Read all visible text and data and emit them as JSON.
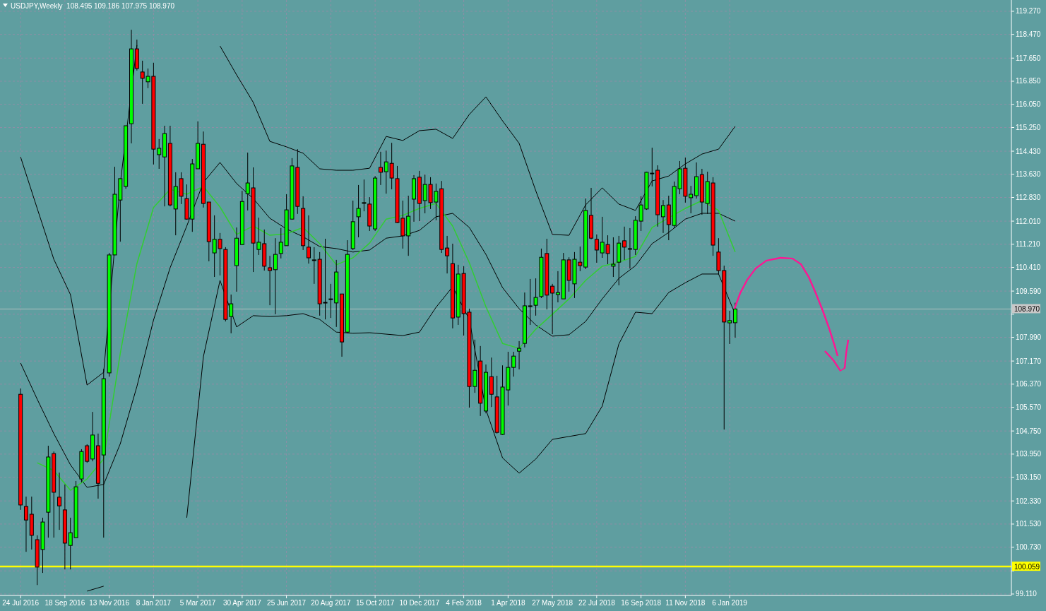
{
  "chart_data": {
    "type": "candlestick",
    "title": "USDJPY,Weekly  108.495 109.186 107.975 108.970",
    "x": [
      "2016-07-24",
      "2016-07-31",
      "2016-08-07",
      "2016-08-14",
      "2016-08-21",
      "2016-08-28",
      "2016-09-04",
      "2016-09-11",
      "2016-09-18",
      "2016-09-25",
      "2016-10-02",
      "2016-10-09",
      "2016-10-16",
      "2016-10-23",
      "2016-10-30",
      "2016-11-06",
      "2016-11-13",
      "2016-11-20",
      "2016-11-27",
      "2016-12-04",
      "2016-12-11",
      "2016-12-18",
      "2016-12-25",
      "2017-01-01",
      "2017-01-08",
      "2017-01-15",
      "2017-01-22",
      "2017-01-29",
      "2017-02-05",
      "2017-02-12",
      "2017-02-19",
      "2017-02-26",
      "2017-03-05",
      "2017-03-12",
      "2017-03-19",
      "2017-03-26",
      "2017-04-02",
      "2017-04-09",
      "2017-04-16",
      "2017-04-23",
      "2017-04-30",
      "2017-05-07",
      "2017-05-14",
      "2017-05-21",
      "2017-05-28",
      "2017-06-04",
      "2017-06-11",
      "2017-06-18",
      "2017-06-25",
      "2017-07-02",
      "2017-07-09",
      "2017-07-16",
      "2017-07-23",
      "2017-07-30",
      "2017-08-06",
      "2017-08-13",
      "2017-08-20",
      "2017-08-27",
      "2017-09-03",
      "2017-09-10",
      "2017-09-17",
      "2017-09-24",
      "2017-10-01",
      "2017-10-08",
      "2017-10-15",
      "2017-10-22",
      "2017-10-29",
      "2017-11-05",
      "2017-11-12",
      "2017-11-19",
      "2017-11-26",
      "2017-12-03",
      "2017-12-10",
      "2017-12-17",
      "2017-12-24",
      "2017-12-31",
      "2018-01-07",
      "2018-01-14",
      "2018-01-21",
      "2018-01-28",
      "2018-02-04",
      "2018-02-11",
      "2018-02-18",
      "2018-02-25",
      "2018-03-04",
      "2018-03-11",
      "2018-03-18",
      "2018-03-25",
      "2018-04-01",
      "2018-04-08",
      "2018-04-15",
      "2018-04-22",
      "2018-04-29",
      "2018-05-06",
      "2018-05-13",
      "2018-05-20",
      "2018-05-27",
      "2018-06-03",
      "2018-06-10",
      "2018-06-17",
      "2018-06-24",
      "2018-07-01",
      "2018-07-08",
      "2018-07-15",
      "2018-07-22",
      "2018-07-29",
      "2018-08-05",
      "2018-08-12",
      "2018-08-19",
      "2018-08-26",
      "2018-09-02",
      "2018-09-09",
      "2018-09-16",
      "2018-09-23",
      "2018-09-30",
      "2018-10-07",
      "2018-10-14",
      "2018-10-21",
      "2018-10-28",
      "2018-11-04",
      "2018-11-11",
      "2018-11-18",
      "2018-11-25",
      "2018-12-02",
      "2018-12-09",
      "2018-12-16",
      "2018-12-23",
      "2018-12-30",
      "2019-01-06",
      "2019-01-13"
    ],
    "ohlc": [
      [
        106.02,
        106.22,
        102.02,
        102.19
      ],
      [
        102.14,
        102.48,
        100.57,
        101.67
      ],
      [
        101.87,
        102.48,
        100.65,
        101.14
      ],
      [
        100.99,
        101.14,
        99.42,
        100.04
      ],
      [
        100.65,
        101.75,
        99.84,
        101.6
      ],
      [
        101.94,
        104.24,
        101.06,
        103.85
      ],
      [
        103.97,
        104.04,
        101.06,
        102.63
      ],
      [
        102.46,
        103.31,
        101.33,
        102.16
      ],
      [
        102.02,
        102.9,
        99.96,
        100.87
      ],
      [
        100.79,
        101.75,
        99.96,
        101.23
      ],
      [
        101.06,
        103.02,
        101.06,
        102.82
      ],
      [
        103.09,
        104.12,
        102.97,
        104.04
      ],
      [
        104.24,
        104.29,
        103.65,
        103.7
      ],
      [
        103.78,
        105.41,
        103.7,
        104.61
      ],
      [
        104.24,
        104.66,
        102.41,
        102.94
      ],
      [
        103.92,
        106.9,
        101.06,
        106.56
      ],
      [
        106.76,
        110.91,
        106.63,
        110.84
      ],
      [
        110.84,
        113.89,
        110.84,
        112.94
      ],
      [
        112.74,
        113.48,
        111.3,
        113.48
      ],
      [
        113.21,
        115.31,
        113.13,
        115.31
      ],
      [
        115.38,
        118.63,
        114.7,
        117.97
      ],
      [
        117.97,
        118.29,
        117.22,
        117.29
      ],
      [
        117.17,
        117.56,
        116.07,
        116.95
      ],
      [
        116.83,
        117.29,
        116.61,
        117.02
      ],
      [
        117.02,
        117.49,
        113.97,
        114.5
      ],
      [
        114.31,
        114.85,
        113.82,
        114.53
      ],
      [
        114.23,
        115.31,
        112.52,
        115.04
      ],
      [
        114.7,
        115.31,
        112.52,
        112.57
      ],
      [
        112.43,
        113.7,
        111.52,
        113.21
      ],
      [
        113.48,
        113.7,
        112.6,
        112.87
      ],
      [
        112.79,
        113.28,
        112.06,
        112.08
      ],
      [
        112.08,
        114.16,
        111.64,
        113.99
      ],
      [
        113.82,
        115.46,
        113.82,
        114.7
      ],
      [
        114.67,
        115.11,
        112.48,
        112.62
      ],
      [
        112.67,
        112.67,
        110.62,
        111.3
      ],
      [
        110.91,
        112.21,
        110.08,
        111.38
      ],
      [
        111.38,
        111.6,
        110.13,
        111.06
      ],
      [
        111.03,
        111.11,
        108.54,
        108.61
      ],
      [
        108.71,
        109.47,
        108.13,
        109.15
      ],
      [
        110.47,
        111.79,
        109.57,
        111.42
      ],
      [
        111.2,
        113.06,
        111.18,
        112.69
      ],
      [
        112.96,
        114.38,
        112.38,
        113.33
      ],
      [
        113.16,
        113.87,
        110.25,
        111.25
      ],
      [
        111.03,
        112.13,
        110.84,
        111.28
      ],
      [
        111.23,
        111.72,
        110.3,
        110.45
      ],
      [
        110.4,
        110.81,
        109.1,
        110.3
      ],
      [
        110.33,
        111.42,
        108.79,
        110.86
      ],
      [
        110.89,
        111.77,
        110.72,
        111.28
      ],
      [
        111.16,
        112.94,
        111.16,
        112.4
      ],
      [
        112.08,
        114.19,
        112.06,
        113.92
      ],
      [
        113.87,
        114.5,
        112.26,
        112.52
      ],
      [
        112.45,
        112.87,
        111.01,
        111.16
      ],
      [
        111.11,
        112.21,
        110.54,
        110.74
      ],
      [
        110.67,
        111.11,
        109.84,
        110.67
      ],
      [
        110.69,
        110.94,
        108.74,
        109.15
      ],
      [
        109.2,
        111.4,
        108.61,
        109.2
      ],
      [
        109.32,
        109.84,
        108.66,
        109.32
      ],
      [
        109.18,
        110.67,
        108.35,
        110.25
      ],
      [
        109.49,
        109.49,
        107.32,
        107.83
      ],
      [
        108.17,
        111.35,
        108.13,
        110.86
      ],
      [
        111.06,
        112.72,
        111.01,
        111.99
      ],
      [
        112.16,
        113.26,
        111.45,
        112.45
      ],
      [
        112.65,
        113.45,
        112.35,
        112.65
      ],
      [
        112.6,
        112.84,
        111.67,
        111.84
      ],
      [
        111.74,
        113.57,
        111.67,
        113.5
      ],
      [
        113.87,
        114.41,
        113.26,
        113.7
      ],
      [
        113.72,
        114.45,
        112.96,
        114.06
      ],
      [
        114.01,
        114.72,
        113.11,
        113.5
      ],
      [
        113.48,
        113.92,
        111.94,
        111.96
      ],
      [
        112.11,
        112.72,
        111.06,
        111.5
      ],
      [
        111.5,
        112.89,
        110.81,
        112.18
      ],
      [
        112.77,
        113.6,
        111.99,
        113.48
      ],
      [
        113.53,
        113.75,
        112.01,
        112.62
      ],
      [
        112.72,
        113.62,
        112.28,
        113.28
      ],
      [
        113.28,
        113.53,
        112.43,
        112.65
      ],
      [
        112.67,
        113.31,
        112.04,
        113.04
      ],
      [
        113.13,
        113.4,
        110.91,
        111.03
      ],
      [
        111.08,
        111.5,
        110.2,
        110.81
      ],
      [
        110.54,
        111.23,
        108.3,
        108.66
      ],
      [
        108.69,
        110.5,
        108.42,
        110.18
      ],
      [
        110.2,
        110.45,
        108.05,
        108.81
      ],
      [
        108.86,
        108.98,
        105.56,
        106.29
      ],
      [
        106.29,
        107.91,
        106.07,
        106.85
      ],
      [
        107.17,
        107.69,
        105.27,
        105.71
      ],
      [
        105.44,
        107.05,
        105.36,
        106.78
      ],
      [
        106.63,
        107.29,
        105.58,
        106.02
      ],
      [
        105.93,
        106.66,
        104.66,
        104.7
      ],
      [
        104.63,
        107.02,
        104.61,
        106.27
      ],
      [
        106.17,
        107.49,
        105.63,
        106.95
      ],
      [
        106.95,
        107.49,
        106.63,
        107.34
      ],
      [
        107.51,
        107.86,
        106.88,
        107.61
      ],
      [
        107.78,
        109.54,
        107.64,
        109.08
      ],
      [
        109.08,
        110.01,
        108.42,
        109.08
      ],
      [
        109.1,
        110.03,
        108.74,
        109.37
      ],
      [
        109.4,
        111.06,
        109.35,
        110.76
      ],
      [
        110.89,
        111.4,
        108.96,
        109.45
      ],
      [
        109.76,
        109.84,
        108.1,
        109.52
      ],
      [
        109.47,
        110.28,
        109.2,
        109.54
      ],
      [
        109.32,
        110.91,
        109.32,
        110.67
      ],
      [
        110.67,
        110.76,
        109.57,
        109.96
      ],
      [
        109.84,
        110.94,
        109.35,
        110.69
      ],
      [
        110.59,
        111.13,
        110.28,
        110.47
      ],
      [
        110.42,
        112.79,
        110.35,
        112.38
      ],
      [
        112.21,
        113.16,
        111.38,
        111.42
      ],
      [
        111.38,
        111.55,
        110.57,
        111.01
      ],
      [
        110.91,
        112.16,
        110.74,
        111.28
      ],
      [
        111.2,
        111.52,
        110.52,
        110.89
      ],
      [
        110.45,
        111.45,
        110.08,
        110.52
      ],
      [
        110.59,
        111.5,
        109.79,
        111.25
      ],
      [
        111.33,
        111.82,
        110.67,
        111.11
      ],
      [
        111.06,
        111.77,
        110.37,
        111.06
      ],
      [
        111.03,
        112.18,
        110.84,
        112.04
      ],
      [
        112.01,
        112.87,
        111.67,
        112.57
      ],
      [
        112.43,
        113.72,
        112.4,
        113.7
      ],
      [
        113.67,
        114.55,
        113.21,
        113.67
      ],
      [
        113.77,
        113.94,
        111.82,
        112.23
      ],
      [
        112.16,
        112.74,
        111.6,
        112.55
      ],
      [
        112.57,
        112.89,
        111.35,
        111.89
      ],
      [
        111.86,
        113.38,
        111.77,
        113.21
      ],
      [
        113.13,
        114.09,
        112.94,
        113.82
      ],
      [
        113.84,
        114.21,
        112.65,
        112.87
      ],
      [
        112.82,
        113.23,
        112.28,
        112.94
      ],
      [
        112.89,
        114.04,
        112.79,
        113.55
      ],
      [
        113.62,
        113.82,
        112.23,
        112.67
      ],
      [
        112.62,
        113.72,
        112.26,
        113.38
      ],
      [
        113.33,
        113.53,
        110.81,
        111.18
      ],
      [
        110.94,
        111.42,
        110.18,
        110.3
      ],
      [
        110.3,
        110.47,
        104.8,
        108.52
      ],
      [
        108.49,
        108.91,
        107.76,
        108.57
      ],
      [
        108.495,
        109.186,
        107.975,
        108.97
      ]
    ],
    "series": [
      {
        "type": "line",
        "color": "#000000",
        "x": [
          "2016-07-24",
          "2016-08-14",
          "2016-09-04",
          "2016-09-25",
          "2016-10-16",
          "2016-11-06",
          "2016-11-27",
          "2016-12-18",
          "2017-01-08",
          "2017-01-29",
          "2017-02-19",
          "2017-03-12",
          "2017-04-02",
          "2017-04-23",
          "2017-05-14",
          "2017-06-04",
          "2017-06-25",
          "2017-07-16",
          "2017-08-06",
          "2017-08-27",
          "2017-09-17",
          "2017-10-08",
          "2017-10-29",
          "2017-11-19",
          "2017-12-10",
          "2017-12-31",
          "2018-01-21",
          "2018-02-11",
          "2018-03-04",
          "2018-03-25",
          "2018-04-15",
          "2018-05-06",
          "2018-05-27",
          "2018-06-17",
          "2018-07-08",
          "2018-07-29",
          "2018-08-19",
          "2018-09-09",
          "2018-09-30",
          "2018-10-21",
          "2018-11-11",
          "2018-12-02",
          "2018-12-23",
          "2019-01-13"
        ],
        "values": [
          114.23,
          112.45,
          110.69,
          109.47,
          106.34,
          106.78,
          113.31,
          118.1,
          null,
          null,
          null,
          null,
          118.07,
          117.07,
          116.12,
          114.77,
          114.58,
          114.36,
          113.82,
          113.77,
          113.77,
          113.84,
          114.94,
          114.8,
          115.14,
          115.19,
          114.87,
          115.7,
          116.31,
          115.48,
          114.7,
          113.06,
          111.55,
          111.52,
          112.57,
          113.16,
          112.6,
          112.38,
          113.4,
          113.57,
          113.99,
          114.33,
          114.5,
          115.29
        ]
      },
      {
        "type": "line",
        "color": "#000000",
        "x": [
          "2016-07-24",
          "2016-08-14",
          "2016-09-04",
          "2016-09-25",
          "2016-10-16",
          "2016-11-06",
          "2016-11-27",
          "2016-12-18",
          "2017-01-08",
          "2017-01-29",
          "2017-02-19",
          "2017-03-12",
          "2017-04-02",
          "2017-04-23",
          "2017-05-14",
          "2017-06-04",
          "2017-06-25",
          "2017-07-16",
          "2017-08-06",
          "2017-08-27",
          "2017-09-17",
          "2017-10-08",
          "2017-10-29",
          "2017-11-19",
          "2017-12-10",
          "2017-12-31",
          "2018-01-21",
          "2018-02-11",
          "2018-03-04",
          "2018-03-25",
          "2018-04-15",
          "2018-05-06",
          "2018-05-27",
          "2018-06-17",
          "2018-07-08",
          "2018-07-29",
          "2018-08-19",
          "2018-09-09",
          "2018-09-30",
          "2018-10-21",
          "2018-11-11",
          "2018-12-02",
          "2018-12-23",
          "2019-01-13"
        ],
        "values": [
          107.1,
          105.85,
          104.66,
          103.58,
          102.8,
          102.9,
          104.31,
          106.29,
          108.59,
          110.4,
          111.84,
          113.35,
          114.04,
          113.31,
          112.79,
          112.11,
          111.74,
          111.47,
          111.13,
          111.06,
          110.94,
          111.01,
          111.42,
          111.5,
          111.69,
          112.16,
          112.28,
          111.79,
          110.86,
          109.71,
          108.98,
          108.42,
          108.03,
          108.08,
          108.54,
          109.32,
          110.03,
          110.47,
          111.23,
          111.62,
          112.08,
          112.28,
          112.28,
          112.01
        ]
      },
      {
        "type": "line",
        "color": "#000000",
        "x": [
          "2016-10-16",
          "2016-11-06",
          "2016-11-27",
          "2016-12-18",
          "2017-01-08",
          "2017-01-29",
          "2017-02-19",
          "2017-03-12",
          "2017-04-02",
          "2017-04-23",
          "2017-05-14",
          "2017-06-04",
          "2017-06-25",
          "2017-07-16",
          "2017-08-06",
          "2017-08-27",
          "2017-09-17",
          "2017-10-08",
          "2017-10-29",
          "2017-11-19",
          "2017-12-10",
          "2017-12-31",
          "2018-01-21",
          "2018-02-11",
          "2018-03-04",
          "2018-03-25",
          "2018-04-15",
          "2018-05-06",
          "2018-05-27",
          "2018-06-17",
          "2018-07-08",
          "2018-07-29",
          "2018-08-19",
          "2018-09-09",
          "2018-09-30",
          "2018-10-21",
          "2018-11-11",
          "2018-12-02",
          "2018-12-23",
          "2019-01-13"
        ],
        "values": [
          99.21,
          99.38,
          null,
          null,
          null,
          null,
          101.75,
          107.32,
          109.96,
          108.35,
          108.74,
          108.71,
          108.74,
          108.81,
          108.61,
          108.17,
          108.13,
          108.15,
          108.1,
          108.05,
          108.17,
          109.03,
          109.74,
          108.61,
          105.49,
          103.82,
          103.29,
          103.78,
          104.46,
          104.56,
          104.66,
          105.61,
          107.76,
          108.86,
          108.81,
          109.54,
          109.88,
          110.18,
          110.18,
          108.79
        ]
      },
      {
        "type": "line",
        "color": "#32cd32",
        "x": [
          "2016-08-14",
          "2016-09-04",
          "2016-09-25",
          "2016-10-16",
          "2016-11-06",
          "2016-11-27",
          "2016-12-18",
          "2017-01-08",
          "2017-01-29",
          "2017-02-19",
          "2017-03-12",
          "2017-04-02",
          "2017-04-23",
          "2017-05-14",
          "2017-06-04",
          "2017-06-25",
          "2017-07-16",
          "2017-08-06",
          "2017-08-27",
          "2017-09-17",
          "2017-10-08",
          "2017-10-29",
          "2017-11-19",
          "2017-12-10",
          "2017-12-31",
          "2018-01-21",
          "2018-02-11",
          "2018-03-04",
          "2018-03-25",
          "2018-04-15",
          "2018-05-06",
          "2018-05-27",
          "2018-06-17",
          "2018-07-08",
          "2018-07-29",
          "2018-08-19",
          "2018-09-09",
          "2018-09-30",
          "2018-10-21",
          "2018-11-11",
          "2018-12-02",
          "2018-12-23",
          "2019-01-13"
        ],
        "values": [
          103.65,
          103.38,
          102.7,
          103.09,
          103.78,
          107.44,
          110.54,
          112.48,
          113.11,
          112.94,
          113.21,
          112.5,
          111.55,
          111.84,
          111.52,
          111.57,
          111.79,
          111.23,
          110.5,
          110.74,
          111.25,
          112.08,
          112.21,
          112.45,
          112.62,
          111.84,
          110.57,
          109.05,
          107.78,
          107.61,
          108.27,
          108.79,
          109.32,
          109.96,
          110.45,
          110.59,
          110.79,
          111.79,
          112.13,
          112.45,
          112.72,
          112.38,
          110.94
        ]
      }
    ],
    "xlim": [
      "2016-06-28",
      "2019-12-28"
    ],
    "xticks": [
      {
        "value": "2016-07-24",
        "label": "24 Jul 2016"
      },
      {
        "value": "2016-09-18",
        "label": "18 Sep 2016"
      },
      {
        "value": "2016-11-13",
        "label": "13 Nov 2016"
      },
      {
        "value": "2017-01-08",
        "label": "8 Jan 2017"
      },
      {
        "value": "2017-03-05",
        "label": "5 Mar 2017"
      },
      {
        "value": "2017-04-30",
        "label": "30 Apr 2017"
      },
      {
        "value": "2017-06-25",
        "label": "25 Jun 2017"
      },
      {
        "value": "2017-08-20",
        "label": "20 Aug 2017"
      },
      {
        "value": "2017-10-15",
        "label": "15 Oct 2017"
      },
      {
        "value": "2017-12-10",
        "label": "10 Dec 2017"
      },
      {
        "value": "2018-02-04",
        "label": "4 Feb 2018"
      },
      {
        "value": "2018-04-01",
        "label": "1 Apr 2018"
      },
      {
        "value": "2018-05-27",
        "label": "27 May 2018"
      },
      {
        "value": "2018-07-22",
        "label": "22 Jul 2018"
      },
      {
        "value": "2018-09-16",
        "label": "16 Sep 2018"
      },
      {
        "value": "2018-11-11",
        "label": "11 Nov 2018"
      },
      {
        "value": "2019-01-06",
        "label": "6 Jan 2019"
      }
    ],
    "ylim": [
      99.06,
      119.66
    ],
    "yticks": [
      {
        "value": 119.27,
        "label": "119.270"
      },
      {
        "value": 118.47,
        "label": "118.470"
      },
      {
        "value": 117.65,
        "label": "117.650"
      },
      {
        "value": 116.85,
        "label": "116.850"
      },
      {
        "value": 116.05,
        "label": "116.050"
      },
      {
        "value": 115.25,
        "label": "115.250"
      },
      {
        "value": 114.43,
        "label": "114.430"
      },
      {
        "value": 113.63,
        "label": "113.630"
      },
      {
        "value": 112.83,
        "label": "112.830"
      },
      {
        "value": 112.01,
        "label": "112.010"
      },
      {
        "value": 111.21,
        "label": "111.210"
      },
      {
        "value": 110.41,
        "label": "110.410"
      },
      {
        "value": 109.59,
        "label": "109.590"
      },
      {
        "value": 108.79,
        "label": null
      },
      {
        "value": 107.99,
        "label": "107.990"
      },
      {
        "value": 107.17,
        "label": "107.170"
      },
      {
        "value": 106.37,
        "label": "106.370"
      },
      {
        "value": 105.57,
        "label": "105.570"
      },
      {
        "value": 104.75,
        "label": "104.750"
      },
      {
        "value": 103.95,
        "label": "103.950"
      },
      {
        "value": 103.15,
        "label": "103.150"
      },
      {
        "value": 102.33,
        "label": "102.330"
      },
      {
        "value": 101.53,
        "label": "101.530"
      },
      {
        "value": 100.73,
        "label": "100.730"
      },
      {
        "value": 99.91,
        "label": null
      },
      {
        "value": 99.11,
        "label": "99.110"
      }
    ],
    "ref_lines": [
      {
        "axis": "y",
        "value": 100.059,
        "label": "100.059",
        "color": "#ffff00"
      },
      {
        "axis": "y",
        "value": 108.97,
        "label": "108.970",
        "color": "#c8c8c8"
      }
    ],
    "grid": true
  }
}
